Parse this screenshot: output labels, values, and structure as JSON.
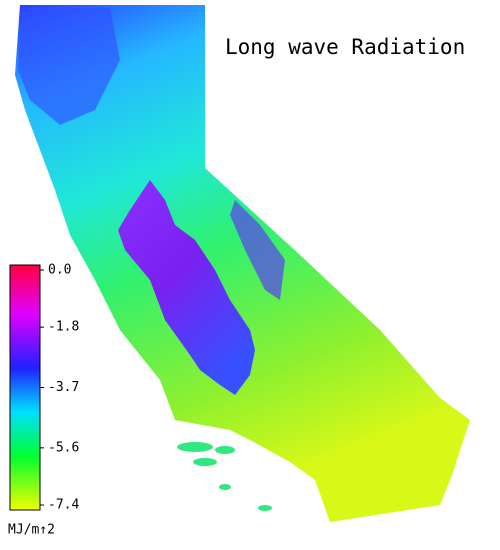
{
  "title": "Long wave Radiation",
  "colorbar": {
    "unit": "MJ/m↑2",
    "clim": [
      -7.4,
      0
    ],
    "ticks": [
      {
        "value": 0,
        "label": "0.0"
      },
      -1.8,
      -3.7,
      -5.6,
      -7.4
    ]
  }
}
